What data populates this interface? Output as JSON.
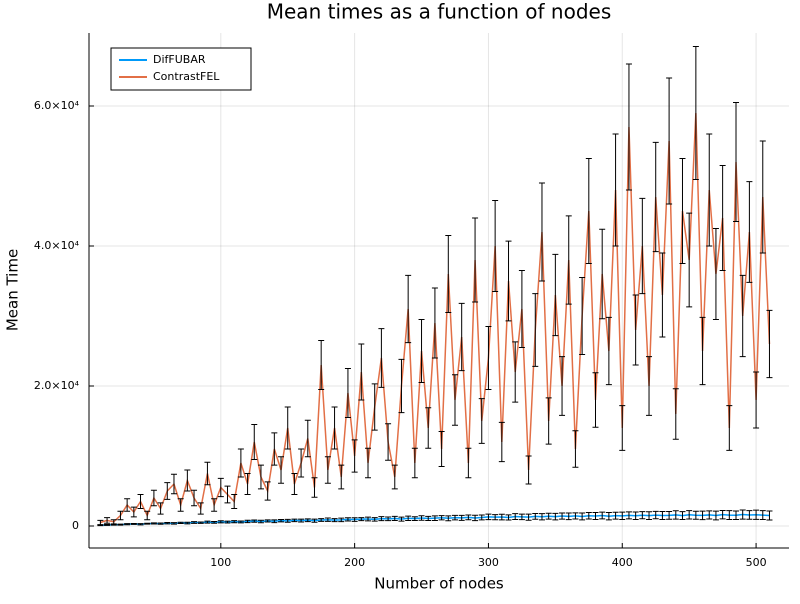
{
  "chart_data": {
    "type": "line",
    "title": "Mean times as a function of nodes",
    "x_label": "Number of nodes",
    "y_label": "Mean Time",
    "x": [
      10,
      15,
      20,
      25,
      30,
      35,
      40,
      45,
      50,
      55,
      60,
      65,
      70,
      75,
      80,
      85,
      90,
      95,
      100,
      105,
      110,
      115,
      120,
      125,
      130,
      135,
      140,
      145,
      150,
      155,
      160,
      165,
      170,
      175,
      180,
      185,
      190,
      195,
      200,
      205,
      210,
      215,
      220,
      225,
      230,
      235,
      240,
      245,
      250,
      255,
      260,
      265,
      270,
      275,
      280,
      285,
      290,
      295,
      300,
      305,
      310,
      315,
      320,
      325,
      330,
      335,
      340,
      345,
      350,
      355,
      360,
      365,
      370,
      375,
      380,
      385,
      390,
      395,
      400,
      405,
      410,
      415,
      420,
      425,
      430,
      435,
      440,
      445,
      450,
      455,
      460,
      465,
      470,
      475,
      480,
      485,
      490,
      495,
      500,
      505,
      510
    ],
    "series": [
      {
        "name": "DifFUBAR",
        "color": "#009af9",
        "values": [
          100,
          150,
          180,
          200,
          260,
          300,
          250,
          330,
          360,
          340,
          400,
          380,
          450,
          420,
          500,
          480,
          550,
          520,
          600,
          560,
          620,
          580,
          660,
          700,
          640,
          720,
          680,
          760,
          740,
          800,
          780,
          820,
          760,
          860,
          900,
          840,
          880,
          950,
          920,
          980,
          1000,
          940,
          1050,
          1020,
          1080,
          980,
          1100,
          1060,
          1150,
          1080,
          1120,
          1180,
          1100,
          1200,
          1160,
          1240,
          1150,
          1220,
          1300,
          1260,
          1280,
          1220,
          1350,
          1300,
          1260,
          1380,
          1320,
          1400,
          1340,
          1420,
          1380,
          1440,
          1360,
          1460,
          1420,
          1500,
          1400,
          1480,
          1450,
          1520,
          1460,
          1540,
          1480,
          1560,
          1500,
          1520,
          1580,
          1490,
          1600,
          1540,
          1520,
          1580,
          1500,
          1620,
          1560,
          1540,
          1640,
          1580,
          1600,
          1560,
          1500
        ],
        "errors": [
          50,
          60,
          50,
          70,
          80,
          60,
          90,
          70,
          80,
          90,
          100,
          110,
          90,
          120,
          130,
          100,
          140,
          120,
          150,
          130,
          150,
          140,
          170,
          160,
          180,
          150,
          190,
          170,
          200,
          180,
          210,
          190,
          220,
          200,
          240,
          210,
          250,
          230,
          260,
          220,
          270,
          250,
          290,
          260,
          300,
          280,
          310,
          270,
          320,
          300,
          330,
          310,
          350,
          320,
          360,
          340,
          380,
          350,
          390,
          360,
          400,
          370,
          420,
          390,
          430,
          410,
          450,
          420,
          460,
          430,
          470,
          440,
          490,
          460,
          500,
          480,
          520,
          490,
          530,
          500,
          540,
          510,
          560,
          530,
          570,
          550,
          590,
          560,
          600,
          570,
          610,
          580,
          620,
          600,
          640,
          610,
          650,
          620,
          660,
          630,
          640
        ]
      },
      {
        "name": "ContrastFEL",
        "color": "#e26f46",
        "values": [
          500,
          800,
          600,
          1500,
          3000,
          2000,
          3500,
          1500,
          4000,
          2500,
          5000,
          6000,
          3000,
          6500,
          4000,
          2500,
          7500,
          3000,
          5500,
          4500,
          3500,
          9000,
          6000,
          12000,
          7000,
          5000,
          11000,
          8000,
          14000,
          6000,
          9000,
          12500,
          5500,
          23000,
          8000,
          14000,
          7000,
          19000,
          10000,
          22000,
          9000,
          17000,
          24000,
          12000,
          7000,
          20000,
          31000,
          9000,
          25000,
          14000,
          29000,
          11000,
          36000,
          18000,
          27000,
          9000,
          38000,
          15000,
          24000,
          40000,
          12000,
          35000,
          22000,
          31000,
          8000,
          28000,
          42000,
          15000,
          33000,
          20000,
          38000,
          11000,
          30000,
          45000,
          18000,
          36000,
          25000,
          48000,
          14000,
          57000,
          28000,
          40000,
          20000,
          47000,
          33000,
          55000,
          16000,
          45000,
          38000,
          59000,
          25000,
          48000,
          36000,
          44000,
          14000,
          52000,
          30000,
          42000,
          18000,
          47000,
          26000
        ],
        "errors": [
          300,
          400,
          300,
          600,
          900,
          700,
          1000,
          600,
          1100,
          800,
          1200,
          1400,
          900,
          1500,
          1100,
          800,
          1600,
          900,
          1300,
          1200,
          1000,
          2000,
          1500,
          2500,
          1700,
          1300,
          2300,
          1900,
          3000,
          1500,
          2000,
          2600,
          1400,
          3500,
          1900,
          3000,
          1700,
          3500,
          2300,
          4000,
          2100,
          3300,
          4200,
          2600,
          1700,
          3800,
          4800,
          2100,
          4500,
          2900,
          5000,
          2500,
          5500,
          3600,
          4800,
          2100,
          6000,
          3200,
          4500,
          6500,
          2800,
          5700,
          4300,
          5500,
          2000,
          5200,
          7000,
          3300,
          5800,
          4200,
          6300,
          2600,
          5500,
          7500,
          3900,
          6400,
          4800,
          8000,
          3200,
          9000,
          5000,
          6800,
          4200,
          7800,
          6000,
          9000,
          3600,
          7500,
          6700,
          9500,
          4800,
          8000,
          6500,
          7500,
          3200,
          8500,
          5800,
          7200,
          4000,
          8000,
          4800
        ]
      }
    ],
    "error_bar_color": "#000000",
    "xlim": [
      1.5,
      524.6
    ],
    "xticks": [
      100,
      200,
      300,
      400,
      500
    ],
    "ylim": [
      -3143,
      70429
    ],
    "yticks": [
      0,
      {
        "value": 20000,
        "label": "2.0×10⁴"
      },
      {
        "value": 40000,
        "label": "4.0×10⁴"
      },
      {
        "value": 60000,
        "label": "6.0×10⁴"
      }
    ],
    "grid": true,
    "legend": "top-left"
  }
}
